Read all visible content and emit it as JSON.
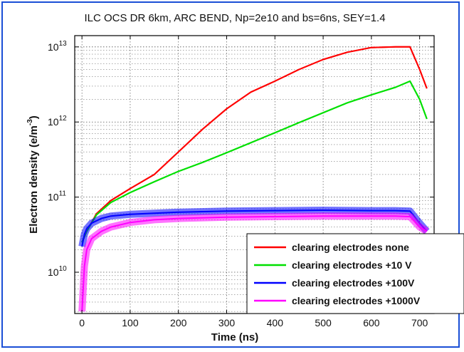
{
  "chart_data": {
    "type": "line",
    "title": "ILC OCS DR 6km, ARC BEND, Np=2e10 and bs=6ns, SEY=1.4",
    "xlabel": "Time (ns)",
    "ylabel": "Electron density (e/m",
    "ylabel_exp": "-3",
    "ylabel_close": ")",
    "xlim": [
      -15,
      730
    ],
    "ylim_log10": [
      9.45,
      13.15
    ],
    "yscale": "log",
    "x_ticks": [
      0,
      100,
      200,
      300,
      400,
      500,
      600,
      700
    ],
    "x_tick_labels": [
      "0",
      "100",
      "200",
      "300",
      "400",
      "500",
      "600",
      "700"
    ],
    "y_ticks_log10": [
      10,
      11,
      12,
      13
    ],
    "y_tick_base": "10",
    "y_tick_exps": [
      "10",
      "11",
      "12",
      "13"
    ],
    "grid": true,
    "legend_position": "bottom-right",
    "series": [
      {
        "name": "clearing electrodes none",
        "color": "#ff0000",
        "x": [
          0,
          10,
          30,
          60,
          100,
          150,
          200,
          250,
          300,
          350,
          400,
          450,
          500,
          550,
          600,
          650,
          680,
          700,
          715
        ],
        "y": [
          25000000000.0,
          35000000000.0,
          60000000000.0,
          90000000000.0,
          130000000000.0,
          200000000000.0,
          400000000000.0,
          800000000000.0,
          1500000000000.0,
          2500000000000.0,
          3500000000000.0,
          5000000000000.0,
          6800000000000.0,
          8500000000000.0,
          9800000000000.0,
          10000000000000.0,
          10000000000000.0,
          5000000000000.0,
          2800000000000.0
        ]
      },
      {
        "name": "clearing electrodes +10 V",
        "color": "#00e000",
        "x": [
          0,
          10,
          30,
          60,
          100,
          150,
          200,
          250,
          300,
          350,
          400,
          450,
          500,
          550,
          600,
          650,
          680,
          700,
          715
        ],
        "y": [
          25000000000.0,
          35000000000.0,
          58000000000.0,
          85000000000.0,
          115000000000.0,
          160000000000.0,
          220000000000.0,
          290000000000.0,
          390000000000.0,
          530000000000.0,
          720000000000.0,
          980000000000.0,
          1330000000000.0,
          1800000000000.0,
          2300000000000.0,
          2900000000000.0,
          3500000000000.0,
          2000000000000.0,
          1100000000000.0
        ]
      },
      {
        "name": "clearing electrodes +100V",
        "color": "#0000ff",
        "x": [
          0,
          5,
          10,
          20,
          40,
          60,
          100,
          150,
          200,
          300,
          400,
          500,
          600,
          650,
          680,
          700,
          715
        ],
        "y": [
          22000000000.0,
          32000000000.0,
          38000000000.0,
          45000000000.0,
          52000000000.0,
          56000000000.0,
          59000000000.0,
          61000000000.0,
          63000000000.0,
          65000000000.0,
          66000000000.0,
          67000000000.0,
          66000000000.0,
          66000000000.0,
          65000000000.0,
          45000000000.0,
          35000000000.0
        ]
      },
      {
        "name": "clearing electrodes +1000V",
        "color": "#ff00ff",
        "x": [
          0,
          5,
          10,
          20,
          40,
          60,
          100,
          150,
          200,
          300,
          400,
          500,
          600,
          650,
          680,
          700,
          715
        ],
        "y": [
          3000000000.0,
          12000000000.0,
          20000000000.0,
          28000000000.0,
          35000000000.0,
          40000000000.0,
          46000000000.0,
          50000000000.0,
          52000000000.0,
          54000000000.0,
          55000000000.0,
          56000000000.0,
          56000000000.0,
          56000000000.0,
          55000000000.0,
          40000000000.0,
          35000000000.0
        ]
      }
    ]
  }
}
